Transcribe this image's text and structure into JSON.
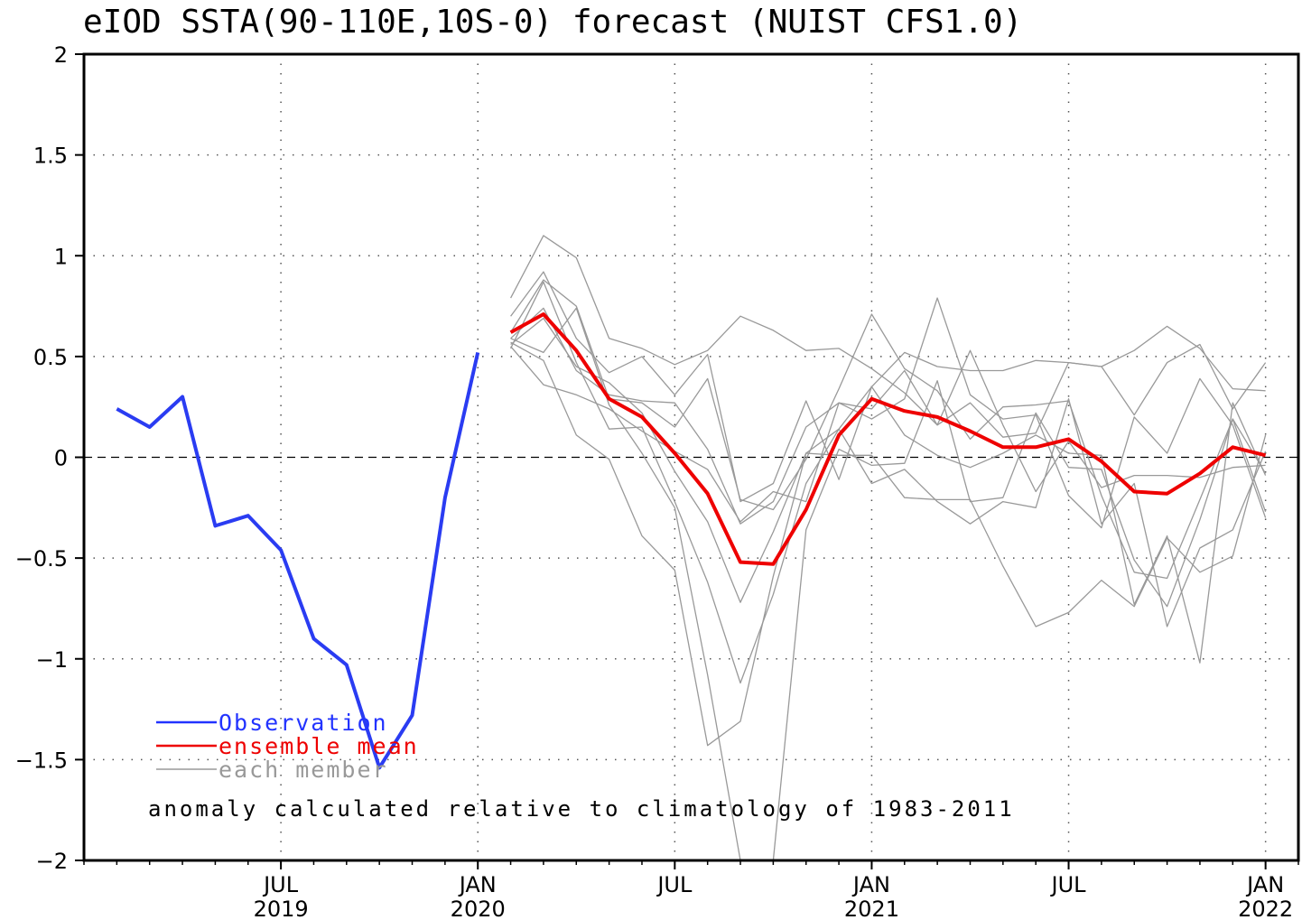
{
  "chart_data": {
    "type": "line",
    "title": "eIOD SSTA(90-110E,10S-0) forecast (NUIST CFS1.0)",
    "xlabel": "",
    "ylabel": "",
    "ylim": [
      -2,
      2
    ],
    "xlim": [
      "2019-01",
      "2022-02"
    ],
    "yticks": [
      {
        "value": 2,
        "label": "2"
      },
      {
        "value": 1.5,
        "label": "1.5"
      },
      {
        "value": 1,
        "label": "1"
      },
      {
        "value": 0.5,
        "label": "0.5"
      },
      {
        "value": 0,
        "label": "0"
      },
      {
        "value": -0.5,
        "label": "−0.5"
      },
      {
        "value": -1,
        "label": "−1"
      },
      {
        "value": -1.5,
        "label": "−1.5"
      },
      {
        "value": -2,
        "label": "−2"
      }
    ],
    "xticks": [
      {
        "date": "2019-07",
        "month": "JUL",
        "year": "2019"
      },
      {
        "date": "2020-01",
        "month": "JAN",
        "year": "2020"
      },
      {
        "date": "2020-07",
        "month": "JUL",
        "year": ""
      },
      {
        "date": "2021-01",
        "month": "JAN",
        "year": "2021"
      },
      {
        "date": "2021-07",
        "month": "JUL",
        "year": ""
      },
      {
        "date": "2022-01",
        "month": "JAN",
        "year": "2022"
      }
    ],
    "grid": true,
    "zero_line": true,
    "legend_position": "bottom-left",
    "legend": [
      {
        "label": "Observation",
        "color": "#2233ff"
      },
      {
        "label": "ensemble mean",
        "color": "#ee0000"
      },
      {
        "label": "each member",
        "color": "#999999"
      }
    ],
    "annotation": "anomaly calculated relative to climatology of 1983-2011",
    "observation": {
      "color": "#2a3cf2",
      "x": [
        "2019-02",
        "2019-03",
        "2019-04",
        "2019-05",
        "2019-06",
        "2019-07",
        "2019-08",
        "2019-09",
        "2019-10",
        "2019-11",
        "2019-12",
        "2020-01"
      ],
      "values": [
        0.24,
        0.15,
        0.3,
        -0.34,
        -0.29,
        -0.46,
        -0.9,
        -1.03,
        -1.54,
        -1.28,
        -0.2,
        0.52
      ]
    },
    "ensemble_mean": {
      "color": "#ee0000",
      "x": [
        "2020-02",
        "2020-03",
        "2020-04",
        "2020-05",
        "2020-06",
        "2020-07",
        "2020-08",
        "2020-09",
        "2020-10",
        "2020-11",
        "2020-12",
        "2021-01",
        "2021-02",
        "2021-03",
        "2021-04",
        "2021-05",
        "2021-06",
        "2021-07",
        "2021-08",
        "2021-09",
        "2021-10",
        "2021-11",
        "2021-12",
        "2022-01"
      ],
      "values": [
        0.62,
        0.71,
        0.53,
        0.29,
        0.2,
        0.02,
        -0.18,
        -0.52,
        -0.53,
        -0.26,
        0.11,
        0.29,
        0.23,
        0.2,
        0.13,
        0.05,
        0.05,
        0.09,
        -0.02,
        -0.17,
        -0.18,
        -0.08,
        0.05,
        0.01
      ]
    },
    "members": {
      "color": "#999999",
      "x": [
        "2020-02",
        "2020-03",
        "2020-04",
        "2020-05",
        "2020-06",
        "2020-07",
        "2020-08",
        "2020-09",
        "2020-10",
        "2020-11",
        "2020-12",
        "2021-01",
        "2021-02",
        "2021-03",
        "2021-04",
        "2021-05",
        "2021-06",
        "2021-07",
        "2021-08",
        "2021-09",
        "2021-10",
        "2021-11",
        "2021-12",
        "2022-01"
      ],
      "series": [
        [
          0.79,
          1.1,
          0.99,
          0.59,
          0.54,
          0.46,
          0.53,
          0.7,
          0.63,
          0.53,
          0.54,
          0.44,
          0.32,
          0.16,
          0.27,
          0.1,
          0.12,
          0.47,
          0.45,
          0.53,
          0.65,
          0.54,
          0.34,
          0.33
        ],
        [
          0.7,
          0.92,
          0.59,
          0.42,
          0.5,
          0.31,
          0.51,
          -0.22,
          -0.13,
          0.28,
          -0.11,
          0.35,
          0.52,
          0.45,
          0.43,
          0.43,
          0.48,
          0.47,
          0.45,
          0.21,
          0.47,
          0.56,
          0.24,
          0.47
        ],
        [
          0.62,
          0.88,
          0.75,
          0.29,
          0.27,
          0.15,
          0.39,
          -0.21,
          -0.26,
          -0.01,
          0.34,
          0.71,
          0.44,
          0.33,
          0.09,
          0.25,
          0.26,
          0.28,
          -0.19,
          -0.57,
          -0.6,
          -0.21,
          0.19,
          -0.08
        ],
        [
          0.59,
          0.74,
          0.43,
          0.31,
          0.28,
          0.27,
          0.04,
          -0.33,
          -0.22,
          0.15,
          0.27,
          0.19,
          0.29,
          0.79,
          0.31,
          0.19,
          0.21,
          -0.19,
          -0.35,
          0.2,
          0.02,
          0.39,
          0.16,
          -0.3
        ],
        [
          0.56,
          0.69,
          0.45,
          0.37,
          0.22,
          -0.07,
          -0.32,
          -0.72,
          -0.37,
          0.02,
          0.14,
          0.35,
          0.11,
          0.01,
          -0.05,
          0.02,
          0.11,
          0.02,
          0.01,
          -0.73,
          -0.39,
          -1.02,
          0.27,
          -0.09
        ],
        [
          0.55,
          0.36,
          0.31,
          0.24,
          0.13,
          0.03,
          -0.06,
          -0.32,
          -0.17,
          -0.22,
          0.27,
          0.24,
          0.43,
          0.16,
          0.53,
          0.16,
          -0.17,
          0.08,
          -0.15,
          -0.09,
          -0.09,
          -0.1,
          -0.05,
          -0.04
        ],
        [
          0.54,
          0.87,
          0.47,
          0.14,
          0.15,
          -0.22,
          -0.62,
          -1.12,
          -0.68,
          -0.13,
          0.14,
          -0.13,
          -0.06,
          -0.22,
          -0.33,
          -0.22,
          -0.25,
          0.29,
          -0.33,
          -0.13,
          -0.84,
          -0.45,
          -0.36,
          0.03
        ],
        [
          0.57,
          0.48,
          0.11,
          -0.01,
          -0.39,
          -0.56,
          -1.43,
          -1.31,
          -0.59,
          0.02,
          0.01,
          0.01,
          -0.2,
          -0.21,
          -0.21,
          -0.54,
          -0.84,
          -0.77,
          -0.61,
          -0.74,
          -0.4,
          -0.57,
          -0.49,
          0.11
        ],
        [
          0.59,
          0.52,
          0.74,
          0.26,
          0.02,
          -0.25,
          -1.08,
          -2.0,
          -2.0,
          -0.36,
          0.04,
          -0.04,
          -0.03,
          0.38,
          -0.22,
          -0.2,
          0.22,
          -0.05,
          -0.06,
          -0.51,
          -0.74,
          -0.31,
          0.19,
          -0.27
        ]
      ]
    }
  }
}
